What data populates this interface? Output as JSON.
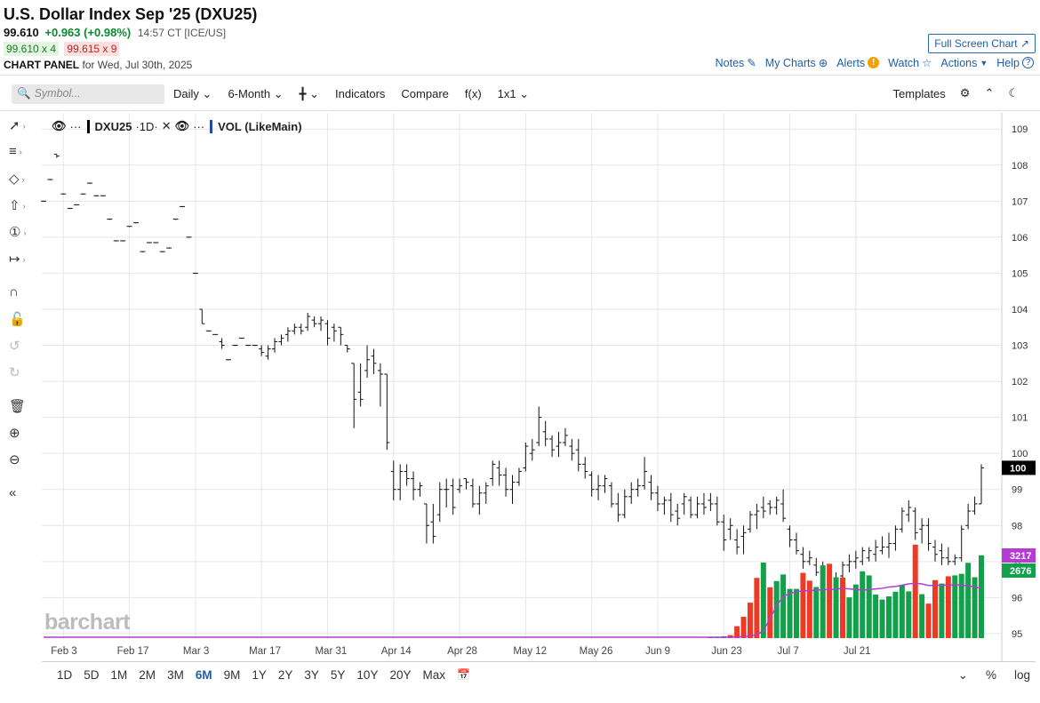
{
  "header": {
    "title": "U.S. Dollar Index Sep '25 (DXU25)",
    "last": "99.610",
    "change": "+0.963 (+0.98%)",
    "time": "14:57 CT [ICE/US]",
    "bid": "99.610 x 4",
    "ask": "99.615 x 9",
    "panel_label": "CHART PANEL",
    "panel_date": "for Wed, Jul 30th, 2025",
    "fullscreen": "Full Screen Chart ↗",
    "nav": {
      "notes": "Notes",
      "mycharts": "My Charts",
      "alerts": "Alerts",
      "watch": "Watch",
      "actions": "Actions",
      "help": "Help"
    }
  },
  "toolbar": {
    "search_placeholder": "Symbol...",
    "interval": "Daily",
    "range": "6-Month",
    "indicators": "Indicators",
    "compare": "Compare",
    "fx": "f(x)",
    "layout": "1x1",
    "templates": "Templates"
  },
  "legend": {
    "symbol": "DXU25",
    "interval": "·1D·",
    "volume": "VOL (LikeMain)"
  },
  "watermark": "barchart",
  "periods": [
    "1D",
    "5D",
    "1M",
    "2M",
    "3M",
    "6M",
    "9M",
    "1Y",
    "2Y",
    "3Y",
    "5Y",
    "10Y",
    "20Y",
    "Max"
  ],
  "active_period": "6M",
  "bottom_right": {
    "pct": "%",
    "log": "log"
  },
  "colors": {
    "up_volume": "#12a04a",
    "down_volume": "#ee3a24",
    "volume_ma": "#b43cd2",
    "price_tag": "#000000",
    "vol_tag_up": "#12a04a",
    "vol_tag_ma": "#b43cd2"
  },
  "chart_data": {
    "type": "ohlc-bar",
    "x_tick_labels": [
      "Feb 3",
      "Feb 17",
      "Mar 3",
      "Mar 17",
      "Mar 31",
      "Apr 14",
      "Apr 28",
      "May 12",
      "May 26",
      "Jun 9",
      "Jun 23",
      "Jul 7",
      "Jul 21"
    ],
    "y_tick_labels": [
      "95",
      "96",
      "97",
      "98",
      "99",
      "100",
      "101",
      "102",
      "103",
      "104",
      "105",
      "106",
      "107",
      "108",
      "109"
    ],
    "ylim": [
      94.85,
      109.4
    ],
    "grid": true,
    "last_price_label": "100",
    "volume_labels": [
      "3217",
      "2676"
    ],
    "price_series": [
      {
        "o": 107.0,
        "h": 107.0,
        "l": 107.0,
        "c": 107.0
      },
      {
        "o": 107.6,
        "h": 107.6,
        "l": 107.6,
        "c": 107.6
      },
      {
        "o": 108.3,
        "h": 108.3,
        "l": 108.2,
        "c": 108.25
      },
      {
        "o": 107.2,
        "h": 107.2,
        "l": 107.2,
        "c": 107.2
      },
      {
        "o": 106.8,
        "h": 106.8,
        "l": 106.8,
        "c": 106.8
      },
      {
        "o": 106.9,
        "h": 106.9,
        "l": 106.9,
        "c": 106.9
      },
      {
        "o": 107.2,
        "h": 107.2,
        "l": 107.2,
        "c": 107.2
      },
      {
        "o": 107.5,
        "h": 107.5,
        "l": 107.5,
        "c": 107.5
      },
      {
        "o": 107.15,
        "h": 107.15,
        "l": 107.15,
        "c": 107.15
      },
      {
        "o": 107.15,
        "h": 107.15,
        "l": 107.15,
        "c": 107.15
      },
      {
        "o": 106.5,
        "h": 106.5,
        "l": 106.5,
        "c": 106.5
      },
      {
        "o": 105.9,
        "h": 105.9,
        "l": 105.9,
        "c": 105.9
      },
      {
        "o": 105.9,
        "h": 105.9,
        "l": 105.9,
        "c": 105.9
      },
      {
        "o": 106.3,
        "h": 106.3,
        "l": 106.3,
        "c": 106.3
      },
      {
        "o": 106.4,
        "h": 106.4,
        "l": 106.4,
        "c": 106.4
      },
      {
        "o": 105.6,
        "h": 105.6,
        "l": 105.6,
        "c": 105.6
      },
      {
        "o": 105.85,
        "h": 105.85,
        "l": 105.85,
        "c": 105.85
      },
      {
        "o": 105.85,
        "h": 105.85,
        "l": 105.85,
        "c": 105.85
      },
      {
        "o": 105.6,
        "h": 105.6,
        "l": 105.6,
        "c": 105.6
      },
      {
        "o": 105.7,
        "h": 105.7,
        "l": 105.7,
        "c": 105.7
      },
      {
        "o": 106.5,
        "h": 106.5,
        "l": 106.5,
        "c": 106.5
      },
      {
        "o": 106.85,
        "h": 106.85,
        "l": 106.85,
        "c": 106.85
      },
      {
        "o": 106.0,
        "h": 106.0,
        "l": 106.0,
        "c": 106.0
      },
      {
        "o": 105.0,
        "h": 105.0,
        "l": 105.0,
        "c": 105.0
      },
      {
        "o": 104.0,
        "h": 104.0,
        "l": 103.6,
        "c": 103.6
      },
      {
        "o": 103.4,
        "h": 103.4,
        "l": 103.4,
        "c": 103.4
      },
      {
        "o": 103.3,
        "h": 103.3,
        "l": 103.3,
        "c": 103.3
      },
      {
        "o": 103.1,
        "h": 103.2,
        "l": 102.9,
        "c": 103.0
      },
      {
        "o": 102.6,
        "h": 102.6,
        "l": 102.6,
        "c": 102.6
      },
      {
        "o": 103.0,
        "h": 103.0,
        "l": 103.0,
        "c": 103.0
      },
      {
        "o": 103.2,
        "h": 103.2,
        "l": 103.2,
        "c": 103.2
      },
      {
        "o": 103.0,
        "h": 103.0,
        "l": 103.0,
        "c": 103.0
      },
      {
        "o": 103.0,
        "h": 103.0,
        "l": 103.0,
        "c": 103.0
      },
      {
        "o": 102.9,
        "h": 103.0,
        "l": 102.7,
        "c": 102.8
      },
      {
        "o": 102.7,
        "h": 103.0,
        "l": 102.6,
        "c": 102.9
      },
      {
        "o": 102.9,
        "h": 103.2,
        "l": 102.8,
        "c": 103.1
      },
      {
        "o": 103.1,
        "h": 103.3,
        "l": 103.0,
        "c": 103.2
      },
      {
        "o": 103.3,
        "h": 103.5,
        "l": 103.1,
        "c": 103.4
      },
      {
        "o": 103.4,
        "h": 103.6,
        "l": 103.3,
        "c": 103.5
      },
      {
        "o": 103.5,
        "h": 103.6,
        "l": 103.3,
        "c": 103.4
      },
      {
        "o": 103.5,
        "h": 103.9,
        "l": 103.4,
        "c": 103.8
      },
      {
        "o": 103.7,
        "h": 103.8,
        "l": 103.5,
        "c": 103.6
      },
      {
        "o": 103.6,
        "h": 103.8,
        "l": 103.4,
        "c": 103.7
      },
      {
        "o": 103.6,
        "h": 103.7,
        "l": 103.0,
        "c": 103.2
      },
      {
        "o": 103.5,
        "h": 103.6,
        "l": 103.1,
        "c": 103.4
      },
      {
        "o": 103.5,
        "h": 103.5,
        "l": 103.0,
        "c": 103.3
      },
      {
        "o": 103.0,
        "h": 103.0,
        "l": 102.8,
        "c": 102.9
      },
      {
        "o": 102.5,
        "h": 102.5,
        "l": 100.7,
        "c": 101.5
      },
      {
        "o": 101.7,
        "h": 102.5,
        "l": 101.3,
        "c": 101.5
      },
      {
        "o": 102.3,
        "h": 103.0,
        "l": 102.1,
        "c": 102.6
      },
      {
        "o": 102.7,
        "h": 102.9,
        "l": 102.2,
        "c": 102.5
      },
      {
        "o": 102.3,
        "h": 102.5,
        "l": 101.3,
        "c": 102.2
      },
      {
        "o": 102.2,
        "h": 102.2,
        "l": 100.1,
        "c": 100.3
      },
      {
        "o": 99.5,
        "h": 99.8,
        "l": 98.7,
        "c": 99.0
      },
      {
        "o": 99.0,
        "h": 99.7,
        "l": 98.7,
        "c": 99.5
      },
      {
        "o": 99.5,
        "h": 99.7,
        "l": 99.1,
        "c": 99.3
      },
      {
        "o": 99.3,
        "h": 99.5,
        "l": 98.7,
        "c": 99.0
      },
      {
        "o": 99.0,
        "h": 99.2,
        "l": 98.8,
        "c": 99.1
      },
      {
        "o": 98.6,
        "h": 98.6,
        "l": 97.5,
        "c": 98.0
      },
      {
        "o": 98.1,
        "h": 98.6,
        "l": 97.5,
        "c": 97.7
      },
      {
        "o": 98.3,
        "h": 99.2,
        "l": 98.1,
        "c": 99.0
      },
      {
        "o": 99.0,
        "h": 99.3,
        "l": 98.5,
        "c": 99.0
      },
      {
        "o": 99.1,
        "h": 99.3,
        "l": 98.3,
        "c": 98.5
      },
      {
        "o": 99.0,
        "h": 99.3,
        "l": 98.9,
        "c": 99.1
      },
      {
        "o": 99.3,
        "h": 99.3,
        "l": 99.0,
        "c": 99.2
      },
      {
        "o": 99.1,
        "h": 99.3,
        "l": 98.5,
        "c": 98.6
      },
      {
        "o": 98.6,
        "h": 99.1,
        "l": 98.3,
        "c": 98.9
      },
      {
        "o": 98.9,
        "h": 99.2,
        "l": 98.6,
        "c": 99.1
      },
      {
        "o": 99.3,
        "h": 99.8,
        "l": 99.1,
        "c": 99.7
      },
      {
        "o": 99.6,
        "h": 99.8,
        "l": 99.1,
        "c": 99.4
      },
      {
        "o": 99.4,
        "h": 99.6,
        "l": 98.8,
        "c": 99.0
      },
      {
        "o": 99.0,
        "h": 99.4,
        "l": 98.6,
        "c": 99.2
      },
      {
        "o": 99.2,
        "h": 99.6,
        "l": 99.1,
        "c": 99.5
      },
      {
        "o": 99.6,
        "h": 100.3,
        "l": 99.5,
        "c": 100.2
      },
      {
        "o": 100.0,
        "h": 100.4,
        "l": 99.8,
        "c": 100.1
      },
      {
        "o": 100.3,
        "h": 101.3,
        "l": 100.2,
        "c": 101.0
      },
      {
        "o": 100.6,
        "h": 100.9,
        "l": 100.2,
        "c": 100.4
      },
      {
        "o": 100.4,
        "h": 100.5,
        "l": 99.9,
        "c": 100.1
      },
      {
        "o": 100.2,
        "h": 100.6,
        "l": 99.9,
        "c": 100.3
      },
      {
        "o": 100.3,
        "h": 100.7,
        "l": 100.2,
        "c": 100.5
      },
      {
        "o": 100.2,
        "h": 100.4,
        "l": 99.8,
        "c": 100.0
      },
      {
        "o": 100.1,
        "h": 100.4,
        "l": 99.5,
        "c": 99.7
      },
      {
        "o": 99.7,
        "h": 99.9,
        "l": 99.3,
        "c": 99.5
      },
      {
        "o": 99.4,
        "h": 99.5,
        "l": 98.8,
        "c": 99.0
      },
      {
        "o": 99.0,
        "h": 99.4,
        "l": 98.7,
        "c": 99.1
      },
      {
        "o": 99.1,
        "h": 99.4,
        "l": 98.9,
        "c": 99.3
      },
      {
        "o": 99.1,
        "h": 99.2,
        "l": 98.5,
        "c": 98.6
      },
      {
        "o": 98.6,
        "h": 98.9,
        "l": 98.1,
        "c": 98.3
      },
      {
        "o": 98.3,
        "h": 99.0,
        "l": 98.2,
        "c": 98.8
      },
      {
        "o": 98.8,
        "h": 99.2,
        "l": 98.6,
        "c": 99.0
      },
      {
        "o": 99.0,
        "h": 99.3,
        "l": 98.8,
        "c": 99.1
      },
      {
        "o": 99.1,
        "h": 99.9,
        "l": 99.0,
        "c": 99.5
      },
      {
        "o": 99.2,
        "h": 99.4,
        "l": 98.7,
        "c": 98.9
      },
      {
        "o": 98.9,
        "h": 99.1,
        "l": 98.4,
        "c": 98.6
      },
      {
        "o": 98.6,
        "h": 98.8,
        "l": 98.3,
        "c": 98.7
      },
      {
        "o": 98.7,
        "h": 98.9,
        "l": 98.1,
        "c": 98.3
      },
      {
        "o": 98.4,
        "h": 98.6,
        "l": 98.0,
        "c": 98.2
      },
      {
        "o": 98.6,
        "h": 98.9,
        "l": 98.3,
        "c": 98.8
      },
      {
        "o": 98.7,
        "h": 98.8,
        "l": 98.2,
        "c": 98.3
      },
      {
        "o": 98.3,
        "h": 98.8,
        "l": 98.2,
        "c": 98.6
      },
      {
        "o": 98.6,
        "h": 98.9,
        "l": 98.3,
        "c": 98.5
      },
      {
        "o": 98.7,
        "h": 98.9,
        "l": 98.4,
        "c": 98.6
      },
      {
        "o": 98.6,
        "h": 98.8,
        "l": 98.0,
        "c": 98.1
      },
      {
        "o": 98.1,
        "h": 98.3,
        "l": 97.3,
        "c": 97.6
      },
      {
        "o": 97.9,
        "h": 98.2,
        "l": 97.6,
        "c": 98.0
      },
      {
        "o": 97.6,
        "h": 97.9,
        "l": 97.2,
        "c": 97.4
      },
      {
        "o": 97.7,
        "h": 98.0,
        "l": 97.2,
        "c": 97.8
      },
      {
        "o": 97.9,
        "h": 98.4,
        "l": 97.8,
        "c": 98.3
      },
      {
        "o": 98.3,
        "h": 98.6,
        "l": 97.9,
        "c": 98.4
      },
      {
        "o": 98.5,
        "h": 98.8,
        "l": 98.2,
        "c": 98.4
      },
      {
        "o": 98.6,
        "h": 98.7,
        "l": 98.3,
        "c": 98.5
      },
      {
        "o": 98.5,
        "h": 98.8,
        "l": 98.3,
        "c": 98.7
      },
      {
        "o": 98.6,
        "h": 99.0,
        "l": 98.1,
        "c": 98.2
      },
      {
        "o": 97.9,
        "h": 98.0,
        "l": 97.4,
        "c": 97.6
      },
      {
        "o": 97.6,
        "h": 97.8,
        "l": 97.2,
        "c": 97.3
      },
      {
        "o": 97.2,
        "h": 97.4,
        "l": 96.8,
        "c": 97.0
      },
      {
        "o": 97.0,
        "h": 97.3,
        "l": 96.9,
        "c": 97.1
      },
      {
        "o": 96.9,
        "h": 97.1,
        "l": 96.6,
        "c": 96.7
      },
      {
        "o": 96.7,
        "h": 97.0,
        "l": 96.5,
        "c": 96.8
      },
      {
        "o": 96.5,
        "h": 96.7,
        "l": 95.9,
        "c": 96.1
      },
      {
        "o": 96.4,
        "h": 96.7,
        "l": 96.2,
        "c": 96.5
      },
      {
        "o": 96.6,
        "h": 97.0,
        "l": 96.5,
        "c": 96.9
      },
      {
        "o": 96.9,
        "h": 97.2,
        "l": 96.7,
        "c": 97.0
      },
      {
        "o": 97.0,
        "h": 97.3,
        "l": 96.8,
        "c": 97.1
      },
      {
        "o": 97.0,
        "h": 97.4,
        "l": 96.9,
        "c": 97.3
      },
      {
        "o": 97.1,
        "h": 97.4,
        "l": 97.0,
        "c": 97.3
      },
      {
        "o": 97.2,
        "h": 97.6,
        "l": 97.0,
        "c": 97.4
      },
      {
        "o": 97.3,
        "h": 97.7,
        "l": 97.2,
        "c": 97.4
      },
      {
        "o": 97.4,
        "h": 97.8,
        "l": 97.1,
        "c": 97.5
      },
      {
        "o": 97.5,
        "h": 98.0,
        "l": 97.3,
        "c": 97.9
      },
      {
        "o": 97.9,
        "h": 98.5,
        "l": 97.8,
        "c": 98.4
      },
      {
        "o": 98.3,
        "h": 98.7,
        "l": 98.1,
        "c": 98.5
      },
      {
        "o": 98.4,
        "h": 98.5,
        "l": 97.6,
        "c": 97.8
      },
      {
        "o": 97.9,
        "h": 98.2,
        "l": 97.5,
        "c": 98.0
      },
      {
        "o": 98.0,
        "h": 98.2,
        "l": 97.3,
        "c": 97.5
      },
      {
        "o": 97.4,
        "h": 97.6,
        "l": 97.0,
        "c": 97.2
      },
      {
        "o": 97.3,
        "h": 97.5,
        "l": 96.9,
        "c": 97.1
      },
      {
        "o": 97.1,
        "h": 97.4,
        "l": 96.9,
        "c": 97.0
      },
      {
        "o": 97.0,
        "h": 97.2,
        "l": 96.9,
        "c": 97.1
      },
      {
        "o": 97.1,
        "h": 98.0,
        "l": 97.0,
        "c": 97.9
      },
      {
        "o": 98.0,
        "h": 98.6,
        "l": 97.9,
        "c": 98.4
      },
      {
        "o": 98.4,
        "h": 98.8,
        "l": 98.3,
        "c": 98.6
      },
      {
        "o": 98.6,
        "h": 99.7,
        "l": 98.6,
        "c": 99.6
      }
    ],
    "volume_series": {
      "values": [
        0,
        0,
        0,
        0,
        0,
        0,
        0,
        0,
        0,
        0,
        0,
        0,
        0,
        0,
        0,
        0,
        0,
        0,
        0,
        0,
        0,
        0,
        0,
        0,
        0,
        0,
        0,
        0,
        0,
        0,
        0,
        0,
        0,
        0,
        0,
        0,
        0,
        0,
        0,
        0,
        0,
        0,
        0,
        0,
        0,
        0,
        0,
        0,
        0,
        0,
        0,
        0,
        0,
        0,
        0,
        0,
        0,
        0,
        0,
        0,
        0,
        0,
        0,
        0,
        0,
        0,
        0,
        0,
        0,
        0,
        0,
        0,
        0,
        0,
        0,
        0,
        0,
        0,
        0,
        0,
        0,
        0,
        0,
        0,
        0,
        0,
        0,
        0,
        0,
        0,
        0,
        0,
        0,
        0,
        0,
        0,
        0,
        0,
        0,
        0,
        0,
        0,
        0,
        0,
        0,
        0,
        0,
        0,
        0,
        0,
        0,
        0,
        0,
        0,
        0,
        0,
        0,
        0,
        0,
        0,
        0,
        0,
        0,
        0,
        0,
        0,
        0,
        0,
        0,
        0,
        0,
        0,
        0,
        0,
        0,
        0,
        0,
        0,
        0,
        0,
        0,
        0,
        0,
        0,
        0,
        0,
        0,
        0
      ],
      "ylim_note": "volume plotted in lower pane on its own scale"
    },
    "volume_bars": [
      {
        "v": 30,
        "up": true
      },
      {
        "v": 40,
        "up": true
      },
      {
        "v": 60,
        "up": true
      },
      {
        "v": 95,
        "up": false
      },
      {
        "v": 380,
        "up": false
      },
      {
        "v": 680,
        "up": false
      },
      {
        "v": 1130,
        "up": false
      },
      {
        "v": 1920,
        "up": false
      },
      {
        "v": 2410,
        "up": true
      },
      {
        "v": 1620,
        "up": false
      },
      {
        "v": 1820,
        "up": true
      },
      {
        "v": 2030,
        "up": true
      },
      {
        "v": 1570,
        "up": true
      },
      {
        "v": 1570,
        "up": true
      },
      {
        "v": 2080,
        "up": false
      },
      {
        "v": 1830,
        "up": false
      },
      {
        "v": 1630,
        "up": true
      },
      {
        "v": 2320,
        "up": true
      },
      {
        "v": 2370,
        "up": false
      },
      {
        "v": 1940,
        "up": true
      },
      {
        "v": 1930,
        "up": false
      },
      {
        "v": 1300,
        "up": true
      },
      {
        "v": 1710,
        "up": true
      },
      {
        "v": 2130,
        "up": true
      },
      {
        "v": 2000,
        "up": true
      },
      {
        "v": 1390,
        "up": true
      },
      {
        "v": 1230,
        "up": true
      },
      {
        "v": 1330,
        "up": true
      },
      {
        "v": 1480,
        "up": true
      },
      {
        "v": 1680,
        "up": true
      },
      {
        "v": 1490,
        "up": true
      },
      {
        "v": 2980,
        "up": false
      },
      {
        "v": 1400,
        "up": true
      },
      {
        "v": 1100,
        "up": false
      },
      {
        "v": 1850,
        "up": false
      },
      {
        "v": 1740,
        "up": true
      },
      {
        "v": 1970,
        "up": false
      },
      {
        "v": 2000,
        "up": true
      },
      {
        "v": 2050,
        "up": true
      },
      {
        "v": 2400,
        "up": true
      },
      {
        "v": 1940,
        "up": true
      },
      {
        "v": 2640,
        "up": true
      }
    ],
    "volume_ma": [
      0,
      0,
      0,
      0,
      10,
      20,
      40,
      80,
      200,
      600,
      1000,
      1300,
      1400,
      1450,
      1480,
      1480,
      1500,
      1520,
      1520,
      1530,
      1560,
      1540,
      1520,
      1500,
      1520,
      1540,
      1560,
      1600,
      1620,
      1660,
      1700,
      1720,
      1700,
      1650,
      1650,
      1660,
      1660,
      1670,
      1660,
      1640,
      1600,
      1560
    ]
  }
}
